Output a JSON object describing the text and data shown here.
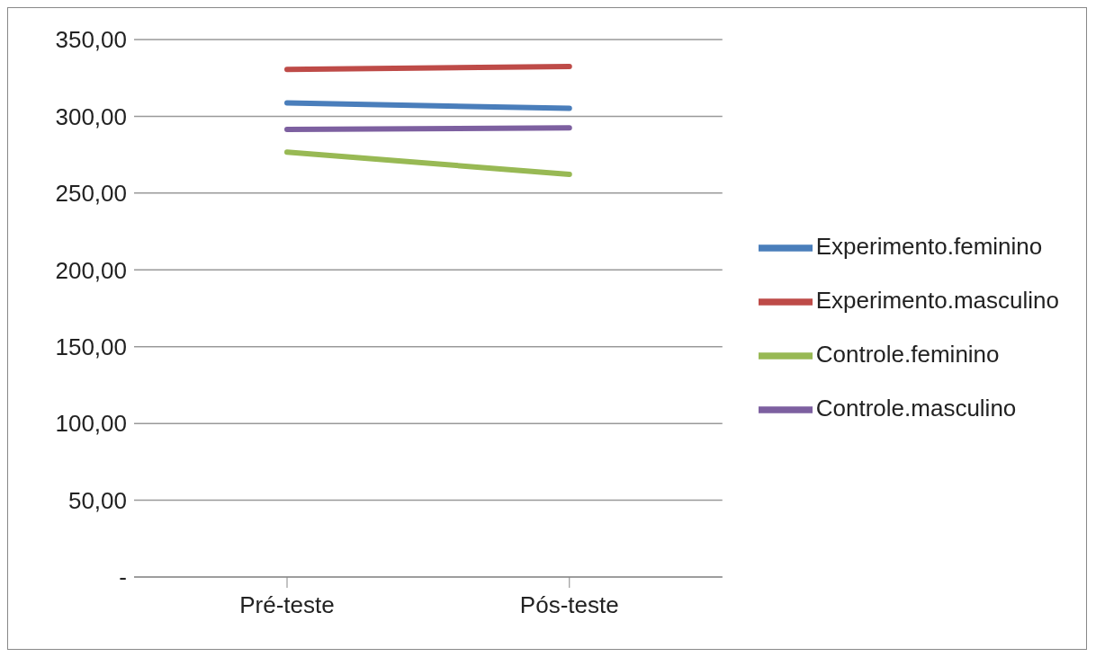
{
  "chart_data": {
    "type": "line",
    "categories": [
      "Pré-teste",
      "Pós-teste"
    ],
    "series": [
      {
        "name": "Experimento.feminino",
        "color": "#4a7ebb",
        "values": [
          308.7,
          305.2
        ]
      },
      {
        "name": "Experimento.masculino",
        "color": "#be4b48",
        "values": [
          330.5,
          332.5
        ]
      },
      {
        "name": "Controle.feminino",
        "color": "#98b954",
        "values": [
          276.7,
          262.2
        ]
      },
      {
        "name": "Controle.masculino",
        "color": "#7d60a0",
        "values": [
          291.5,
          292.5
        ]
      }
    ],
    "ylim": [
      0,
      350
    ],
    "yticks": [
      {
        "value": 0,
        "label": "-"
      },
      {
        "value": 50,
        "label": "50,00"
      },
      {
        "value": 100,
        "label": "100,00"
      },
      {
        "value": 150,
        "label": "150,00"
      },
      {
        "value": 200,
        "label": "200,00"
      },
      {
        "value": 250,
        "label": "250,00"
      },
      {
        "value": 300,
        "label": "300,00"
      },
      {
        "value": 350,
        "label": "350,00"
      }
    ],
    "grid": "y",
    "legend": "right",
    "marker": "none",
    "line_style": "solid"
  }
}
